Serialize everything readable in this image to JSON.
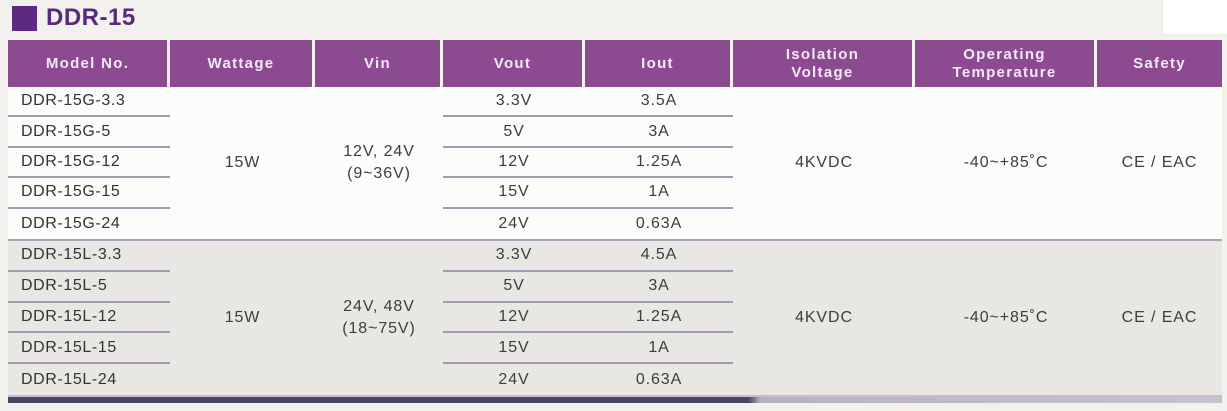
{
  "page": {
    "title": "DDR-15"
  },
  "colors": {
    "header_purple": "#8c4a91",
    "title_purple": "#5c2b80",
    "group_l_gray": "#e8e7e4",
    "separator": "#a49aae",
    "bottom_bar_dark": "#4a4660"
  },
  "table": {
    "headers": [
      {
        "label": "Model No."
      },
      {
        "label": "Wattage"
      },
      {
        "label": "Vin"
      },
      {
        "label": "Vout"
      },
      {
        "label": "Iout"
      },
      {
        "line1": "Isolation",
        "line2": "Voltage"
      },
      {
        "line1": "Operating",
        "line2": "Temperature"
      },
      {
        "label": "Safety"
      }
    ],
    "groups": [
      {
        "wattage": "15W",
        "vin_line1": "12V, 24V",
        "vin_line2": "(9~36V)",
        "isolation_voltage": "4KVDC",
        "operating_temperature": "-40~+85˚C",
        "safety": "CE / EAC",
        "rows": [
          {
            "model": "DDR-15G-3.3",
            "vout": "3.3V",
            "iout": "3.5A"
          },
          {
            "model": "DDR-15G-5",
            "vout": "5V",
            "iout": "3A"
          },
          {
            "model": "DDR-15G-12",
            "vout": "12V",
            "iout": "1.25A"
          },
          {
            "model": "DDR-15G-15",
            "vout": "15V",
            "iout": "1A"
          },
          {
            "model": "DDR-15G-24",
            "vout": "24V",
            "iout": "0.63A"
          }
        ]
      },
      {
        "wattage": "15W",
        "vin_line1": "24V, 48V",
        "vin_line2": "(18~75V)",
        "isolation_voltage": "4KVDC",
        "operating_temperature": "-40~+85˚C",
        "safety": "CE / EAC",
        "rows": [
          {
            "model": "DDR-15L-3.3",
            "vout": "3.3V",
            "iout": "4.5A"
          },
          {
            "model": "DDR-15L-5",
            "vout": "5V",
            "iout": "3A"
          },
          {
            "model": "DDR-15L-12",
            "vout": "12V",
            "iout": "1.25A"
          },
          {
            "model": "DDR-15L-15",
            "vout": "15V",
            "iout": "1A"
          },
          {
            "model": "DDR-15L-24",
            "vout": "24V",
            "iout": "0.63A"
          }
        ]
      }
    ]
  }
}
